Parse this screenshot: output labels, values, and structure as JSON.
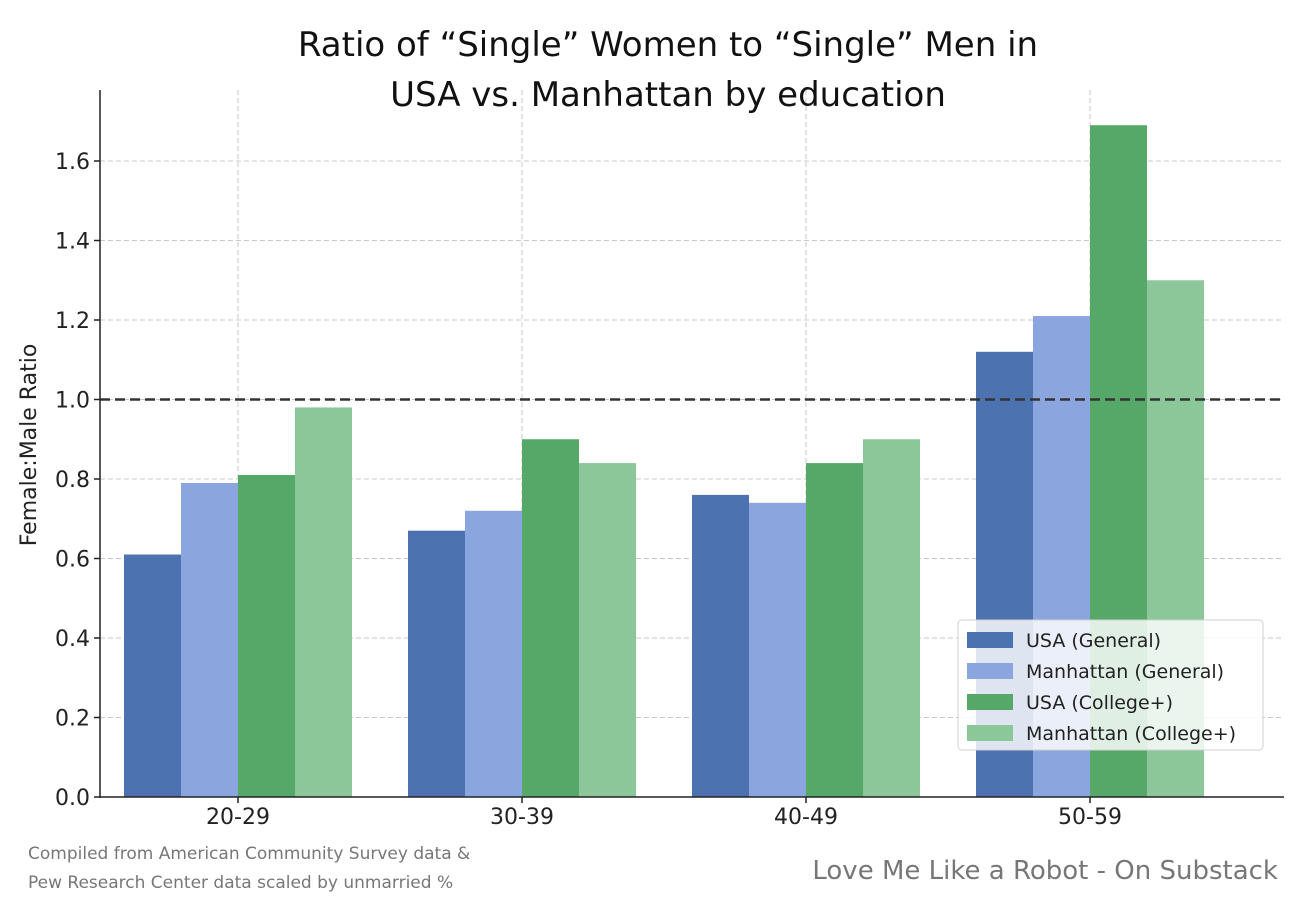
{
  "chart_data": {
    "type": "bar",
    "title_lines": [
      "Ratio of “Single” Women to “Single” Men in",
      "USA vs. Manhattan by education"
    ],
    "xlabel": "",
    "ylabel": "Female:Male Ratio",
    "categories": [
      "20-29",
      "30-39",
      "40-49",
      "50-59"
    ],
    "series": [
      {
        "name": "USA (General)",
        "color": "#4c72b0",
        "values": [
          0.61,
          0.67,
          0.76,
          1.12
        ]
      },
      {
        "name": "Manhattan (General)",
        "color": "#8ba6df",
        "values": [
          0.79,
          0.72,
          0.74,
          1.21
        ]
      },
      {
        "name": "USA (College+)",
        "color": "#55a868",
        "values": [
          0.81,
          0.9,
          0.84,
          1.69
        ]
      },
      {
        "name": "Manhattan (College+)",
        "color": "#8bc799",
        "values": [
          0.98,
          0.84,
          0.9,
          1.3
        ]
      }
    ],
    "ylim": [
      0,
      1.7
    ],
    "yticks": [
      "0.0",
      "0.2",
      "0.4",
      "0.6",
      "0.8",
      "1.0",
      "1.2",
      "1.4",
      "1.6"
    ],
    "reference_line": {
      "y": 1.0,
      "style": "dashed"
    },
    "grid": true,
    "legend_position": "lower-right"
  },
  "footer": {
    "source_line1": "Compiled from American Community Survey data &",
    "source_line2": "Pew Research Center data scaled by unmarried %",
    "credit": "Love Me Like a Robot - On Substack"
  }
}
